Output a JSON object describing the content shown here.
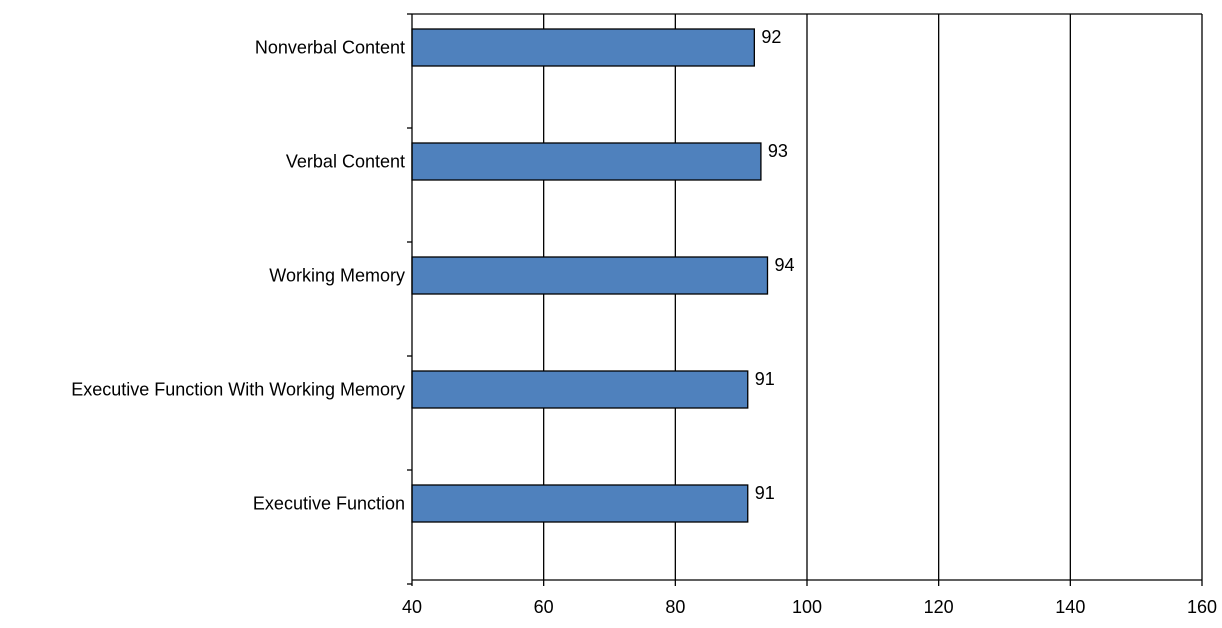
{
  "chart_data": {
    "type": "bar",
    "orientation": "horizontal",
    "categories": [
      "Nonverbal Content",
      "Verbal Content",
      "Working Memory",
      "Executive Function With Working Memory",
      "Executive Function"
    ],
    "values": [
      92,
      93,
      94,
      91,
      91
    ],
    "value_labels": [
      "92",
      "93",
      "94",
      "91",
      "91"
    ],
    "xlim": [
      40,
      160
    ],
    "xticks": [
      40,
      60,
      80,
      100,
      120,
      140,
      160
    ],
    "xtick_labels": [
      "40",
      "60",
      "80",
      "100",
      "120",
      "140",
      "160"
    ],
    "grid": "vertical",
    "legend": "none",
    "title": "",
    "xlabel": "",
    "ylabel": "",
    "colors": {
      "bar_fill": "#4f81bd",
      "bar_stroke": "#000000",
      "gridline": "#000000"
    }
  }
}
